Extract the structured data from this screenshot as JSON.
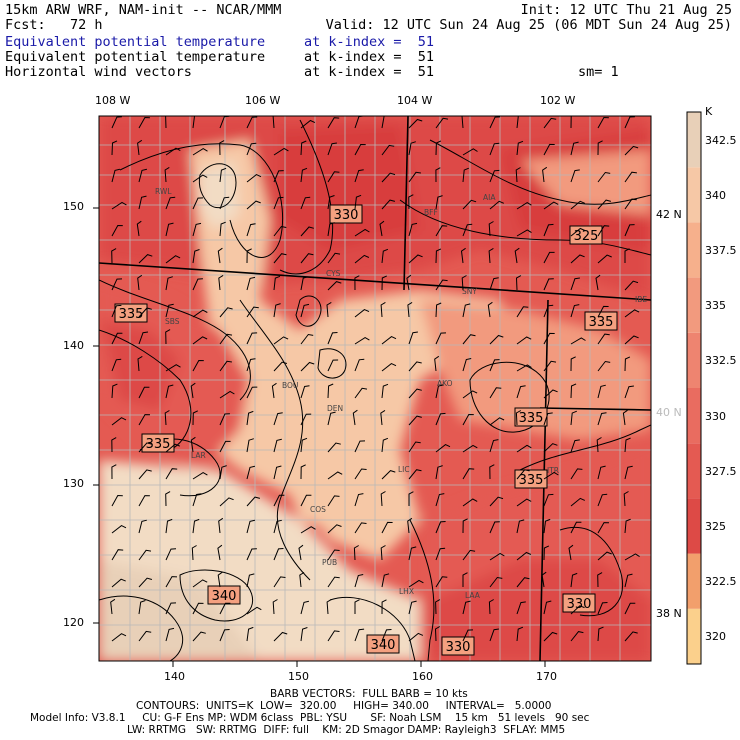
{
  "header": {
    "line1_left": "15km ARW WRF, NAM-init -- NCAR/MMM",
    "line1_right": "Init: 12 UTC Thu 21 Aug 25",
    "line2_left": "Fcst:   72 h",
    "line2_right": "Valid: 12 UTC Sun 24 Aug 25 (06 MDT Sun 24 Aug 25)",
    "fields": [
      {
        "name": "Equivalent potential temperature",
        "level": "at k-index =  51",
        "extra": ""
      },
      {
        "name": "Equivalent potential temperature",
        "level": "at k-index =  51",
        "extra": ""
      },
      {
        "name": "Horizontal wind vectors",
        "level": "at k-index =  51",
        "extra": "sm= 1"
      }
    ]
  },
  "map": {
    "top_lon_labels": [
      "108 W",
      "106 W",
      "104 W",
      "102 W"
    ],
    "left_grid_labels": [
      "150",
      "140",
      "130",
      "120"
    ],
    "bottom_grid_labels": [
      "140",
      "150",
      "160",
      "170"
    ],
    "right_lat_labels": [
      "42 N",
      "40 N",
      "38 N"
    ],
    "city_labels": [
      "RWL",
      "CYS",
      "BFF",
      "AIA",
      "SNY",
      "IBE",
      "SBS",
      "BOU",
      "DEN",
      "AKO",
      "LIC",
      "LAR",
      "COS",
      "ITR",
      "PUB",
      "LHX",
      "LAA"
    ],
    "contour_labels": [
      "330",
      "325",
      "335",
      "335",
      "335",
      "335",
      "335",
      "340",
      "330",
      "340",
      "330"
    ]
  },
  "colorbar": {
    "unit": "K",
    "ticks": [
      "342.5",
      "340",
      "337.5",
      "335",
      "332.5",
      "330",
      "327.5",
      "325",
      "322.5",
      "320"
    ],
    "colors": [
      "#e8d0b8",
      "#f6c8a6",
      "#f6b08c",
      "#f29a7e",
      "#ee8470",
      "#e96c60",
      "#e45a52",
      "#dd4a46",
      "#f29f6c",
      "#fbd08c"
    ]
  },
  "footer": {
    "line1": "BARB VECTORS:  FULL BARB = 10 kts",
    "line2": "CONTOURS:  UNITS=K  LOW=  320.00     HIGH= 340.00     INTERVAL=   5.0000",
    "line3": "Model Info: V3.8.1     CU: G-F Ens MP: WDM 6class  PBL: YSU       SF: Noah LSM    15 km   51 levels   90 sec",
    "line4": "LW: RRTMG   SW: RRTMG  DIFF: full    KM: 2D Smagor DAMP: Rayleigh3  SFLAY: MM5"
  }
}
